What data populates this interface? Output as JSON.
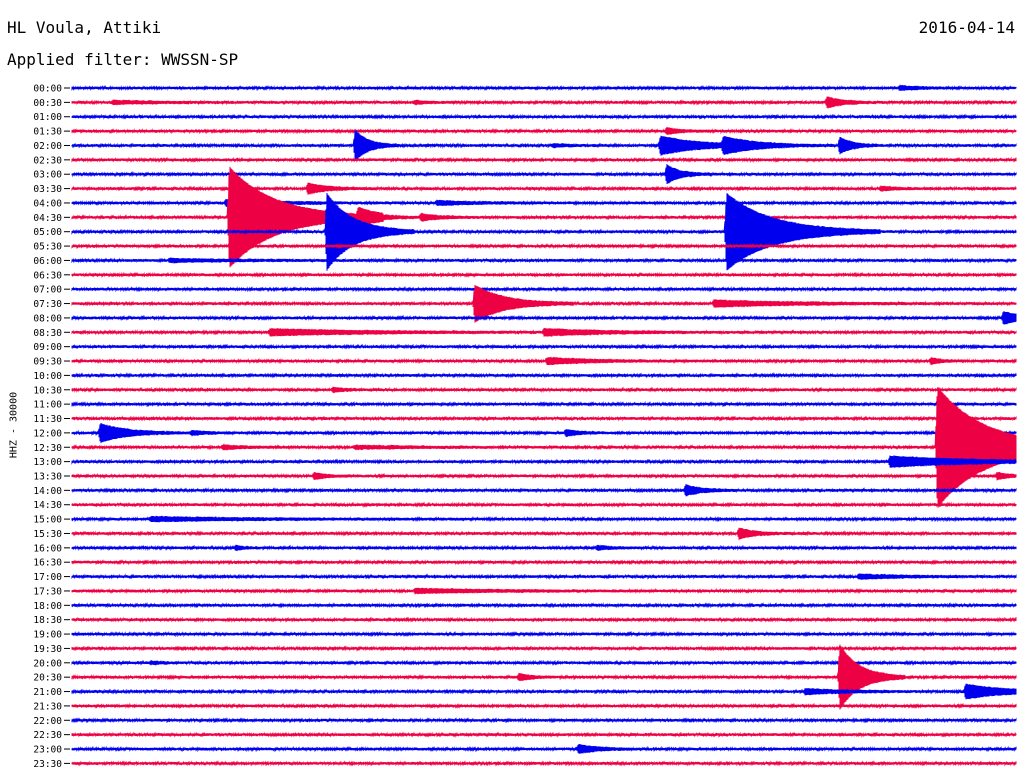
{
  "header": {
    "station": "HL Voula, Attiki",
    "date": "2016-04-14",
    "filter": "Applied filter: WWSSN-SP",
    "channel": "HHZ - 30000"
  },
  "colors": {
    "even_rows": "#0000ee",
    "odd_rows": "#ee0044"
  },
  "chart_data": {
    "type": "helicorder",
    "row_minutes": 30,
    "row_labels": [
      "00:00",
      "00:30",
      "01:00",
      "01:30",
      "02:00",
      "02:30",
      "03:00",
      "03:30",
      "04:00",
      "04:30",
      "05:00",
      "05:30",
      "06:00",
      "06:30",
      "07:00",
      "07:30",
      "08:00",
      "08:30",
      "09:00",
      "09:30",
      "10:00",
      "10:30",
      "11:00",
      "11:30",
      "12:00",
      "12:30",
      "13:00",
      "13:30",
      "14:00",
      "14:30",
      "15:00",
      "15:30",
      "16:00",
      "16:30",
      "17:00",
      "17:30",
      "18:00",
      "18:30",
      "19:00",
      "19:30",
      "20:00",
      "20:30",
      "21:00",
      "21:30",
      "22:00",
      "22:30",
      "23:00",
      "23:30"
    ],
    "events": [
      {
        "row": 0,
        "minute": 26.3,
        "amp": 2,
        "dur": 0.6
      },
      {
        "row": 1,
        "minute": 1.3,
        "amp": 1.5,
        "dur": 1.5
      },
      {
        "row": 1,
        "minute": 10.9,
        "amp": 1.5,
        "dur": 0.4
      },
      {
        "row": 1,
        "minute": 24.0,
        "amp": 5,
        "dur": 0.5
      },
      {
        "row": 3,
        "minute": 18.9,
        "amp": 3,
        "dur": 0.4
      },
      {
        "row": 4,
        "minute": 9.0,
        "amp": 15,
        "dur": 0.4
      },
      {
        "row": 4,
        "minute": 15.3,
        "amp": 1.5,
        "dur": 0.5
      },
      {
        "row": 4,
        "minute": 18.7,
        "amp": 9,
        "dur": 1.2
      },
      {
        "row": 4,
        "minute": 20.7,
        "amp": 7,
        "dur": 1.0
      },
      {
        "row": 4,
        "minute": 24.4,
        "amp": 8,
        "dur": 0.4
      },
      {
        "row": 6,
        "minute": 18.9,
        "amp": 9,
        "dur": 0.4
      },
      {
        "row": 7,
        "minute": 7.5,
        "amp": 5,
        "dur": 0.6
      },
      {
        "row": 7,
        "minute": 25.7,
        "amp": 2,
        "dur": 0.5
      },
      {
        "row": 8,
        "minute": 4.9,
        "amp": 3,
        "dur": 1.5
      },
      {
        "row": 8,
        "minute": 11.6,
        "amp": 2,
        "dur": 1.2
      },
      {
        "row": 9,
        "minute": 5.0,
        "amp": 50,
        "dur": 1.4
      },
      {
        "row": 9,
        "minute": 9.1,
        "amp": 7,
        "dur": 0.6
      },
      {
        "row": 9,
        "minute": 11.1,
        "amp": 3,
        "dur": 0.6
      },
      {
        "row": 10,
        "minute": 8.1,
        "amp": 38,
        "dur": 0.8
      },
      {
        "row": 10,
        "minute": 20.8,
        "amp": 38,
        "dur": 1.4
      },
      {
        "row": 12,
        "minute": 3.1,
        "amp": 1.5,
        "dur": 2.0
      },
      {
        "row": 15,
        "minute": 12.8,
        "amp": 18,
        "dur": 0.9
      },
      {
        "row": 15,
        "minute": 20.4,
        "amp": 3,
        "dur": 2.5
      },
      {
        "row": 16,
        "minute": 29.6,
        "amp": 6,
        "dur": 0.6
      },
      {
        "row": 17,
        "minute": 6.3,
        "amp": 3,
        "dur": 3.0
      },
      {
        "row": 17,
        "minute": 15.0,
        "amp": 3,
        "dur": 2.0
      },
      {
        "row": 19,
        "minute": 15.1,
        "amp": 3,
        "dur": 1.4
      },
      {
        "row": 19,
        "minute": 27.3,
        "amp": 3,
        "dur": 0.3
      },
      {
        "row": 21,
        "minute": 8.3,
        "amp": 2,
        "dur": 0.4
      },
      {
        "row": 24,
        "minute": 0.9,
        "amp": 9,
        "dur": 0.8
      },
      {
        "row": 24,
        "minute": 3.8,
        "amp": 2,
        "dur": 0.5
      },
      {
        "row": 24,
        "minute": 15.7,
        "amp": 3,
        "dur": 0.4
      },
      {
        "row": 24,
        "minute": 28.5,
        "amp": 2,
        "dur": 0.4
      },
      {
        "row": 25,
        "minute": 4.8,
        "amp": 2,
        "dur": 0.6
      },
      {
        "row": 25,
        "minute": 9.0,
        "amp": 1.5,
        "dur": 2.0
      },
      {
        "row": 25,
        "minute": 27.5,
        "amp": 60,
        "dur": 1.5
      },
      {
        "row": 26,
        "minute": 26.0,
        "amp": 5,
        "dur": 2.5
      },
      {
        "row": 27,
        "minute": 7.7,
        "amp": 3,
        "dur": 0.4
      },
      {
        "row": 27,
        "minute": 29.4,
        "amp": 3,
        "dur": 0.4
      },
      {
        "row": 28,
        "minute": 19.5,
        "amp": 5,
        "dur": 0.5
      },
      {
        "row": 30,
        "minute": 2.5,
        "amp": 2,
        "dur": 3.0
      },
      {
        "row": 31,
        "minute": 21.2,
        "amp": 5,
        "dur": 0.5
      },
      {
        "row": 32,
        "minute": 5.2,
        "amp": 2,
        "dur": 0.3
      },
      {
        "row": 32,
        "minute": 16.7,
        "amp": 2,
        "dur": 0.4
      },
      {
        "row": 34,
        "minute": 25.0,
        "amp": 2,
        "dur": 1.5
      },
      {
        "row": 35,
        "minute": 10.9,
        "amp": 2,
        "dur": 2.5
      },
      {
        "row": 40,
        "minute": 2.5,
        "amp": 1.5,
        "dur": 0.3
      },
      {
        "row": 41,
        "minute": 14.2,
        "amp": 3,
        "dur": 0.4
      },
      {
        "row": 41,
        "minute": 24.4,
        "amp": 32,
        "dur": 0.6
      },
      {
        "row": 42,
        "minute": 23.3,
        "amp": 2.5,
        "dur": 1.2
      },
      {
        "row": 42,
        "minute": 28.4,
        "amp": 7,
        "dur": 1.2
      },
      {
        "row": 46,
        "minute": 16.1,
        "amp": 4,
        "dur": 0.6
      }
    ]
  }
}
